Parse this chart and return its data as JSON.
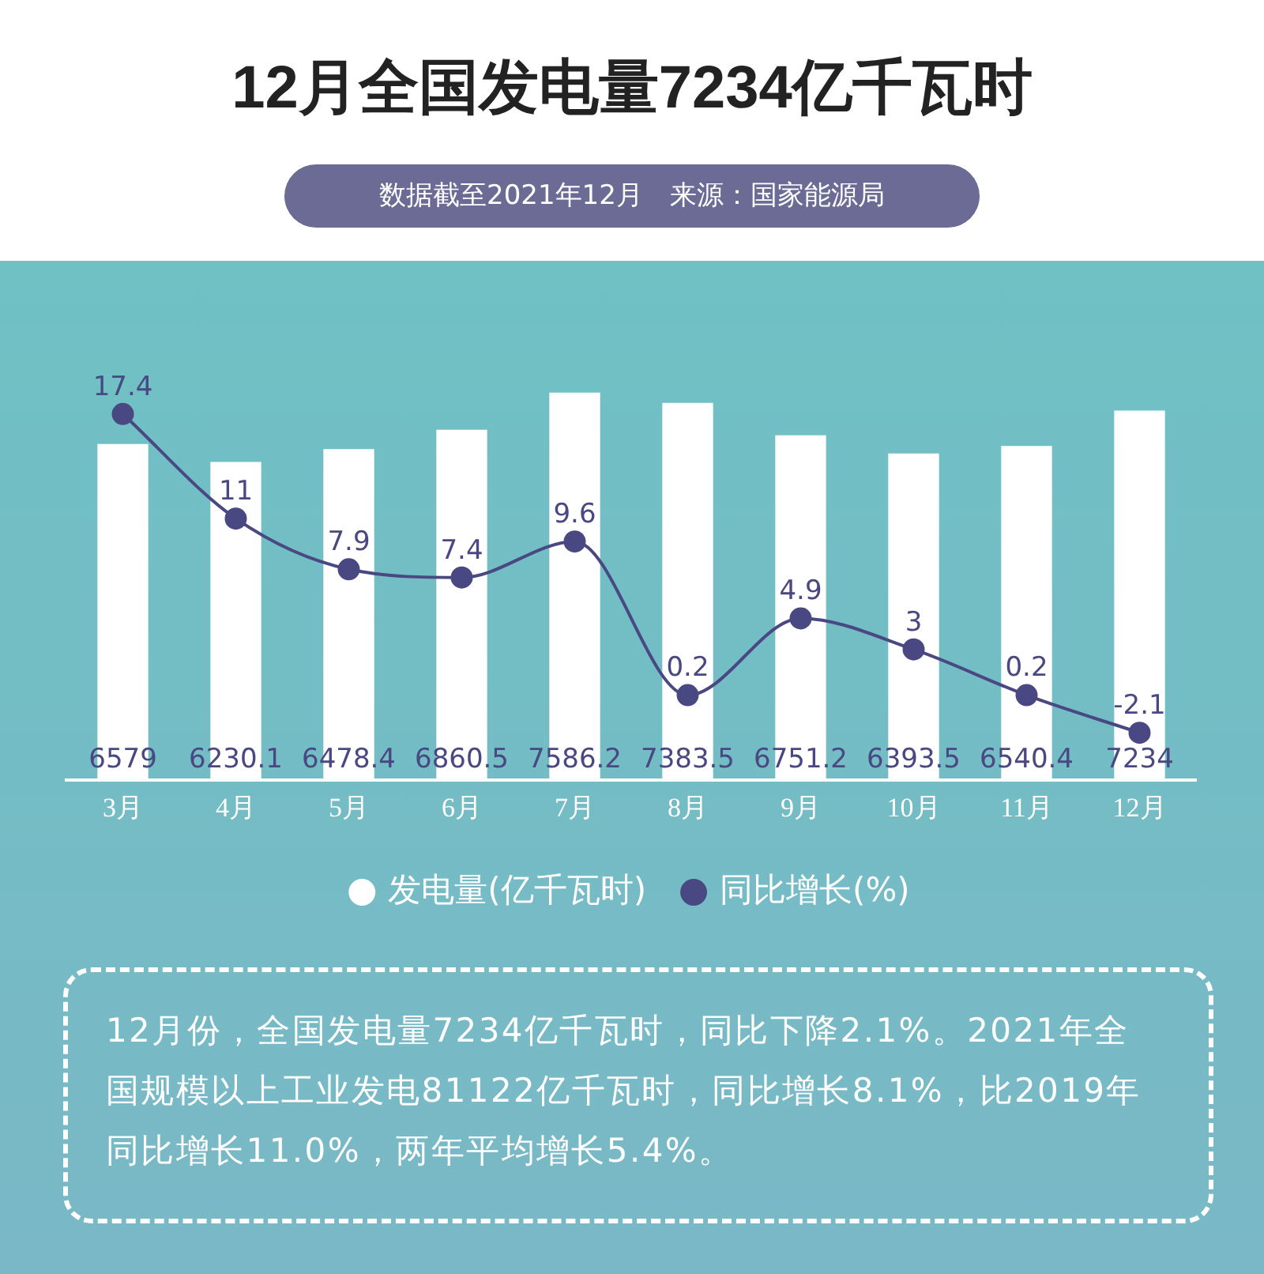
{
  "chart_data": {
    "type": "bar",
    "title": "12月全国发电量7234亿千瓦时",
    "subtitle": "数据截至2021年12月　来源：国家能源局",
    "categories": [
      "3月",
      "4月",
      "5月",
      "6月",
      "7月",
      "8月",
      "9月",
      "10月",
      "11月",
      "12月"
    ],
    "series": [
      {
        "name": "发电量(亿千瓦时)",
        "color": "#ffffff",
        "values": [
          6579,
          6230.1,
          6478.4,
          6860.5,
          7586.2,
          7383.5,
          6751.2,
          6393.5,
          6540.4,
          7234
        ]
      },
      {
        "type": "line",
        "name": "同比增长(%)",
        "color": "#4a4882",
        "axis": "y2",
        "values": [
          17.4,
          11,
          7.9,
          7.4,
          9.6,
          0.2,
          4.9,
          3,
          0.2,
          -2.1
        ]
      }
    ],
    "tick_labels": "x",
    "legend": "bottom",
    "marker": "circle",
    "data_labels": true,
    "annotations": [
      "12月份，全国发电量7234亿千瓦时，同比下降2.1%。2021年全国规模以上工业发电81122亿千瓦时，同比增长8.1%，比2019年同比增长11.0%，两年平均增长5.4%。"
    ]
  }
}
